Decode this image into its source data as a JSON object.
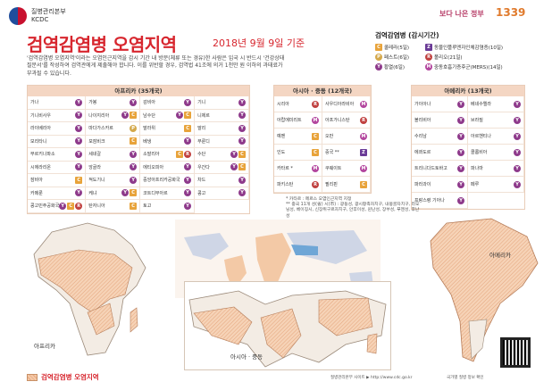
{
  "header": {
    "agency": "질병관리본부",
    "agency_en": "KCDC",
    "title": "검역감염병 오염지역",
    "subtitle": "2018년 9월 9일 기준",
    "intro": "'검역감염병 오염지역'이라는 오염인근지역을 감시 기간 내 방문(체류 또는 경유)한 사람은 입국 시 반드시 '건강상태 질문서'를 작성하여 검역관에게 제출해야 합니다. 이를 위반할 경우, 검역법 41조에 의거 1천만 원 이하의 과태료가 부과될 수 있습니다.",
    "brand_right": "보다 나은 정부",
    "brand_1339": "1339"
  },
  "legend": {
    "title": "검역감염병 (감시기간)",
    "items": [
      {
        "code": "C",
        "label": "콜레라(5일)"
      },
      {
        "code": "Z",
        "label": "동물인플루엔자인체감염증(10일)"
      },
      {
        "code": "P",
        "label": "페스트(6일)"
      },
      {
        "code": "R",
        "label": "폴리오(21일)"
      },
      {
        "code": "Y",
        "label": "황열(6일)"
      },
      {
        "code": "M",
        "label": "중동호흡기증후군(MERS)(14일)"
      }
    ]
  },
  "regions": {
    "africa": {
      "title": "아프리카 (35개국)",
      "countries": [
        {
          "name": "가나",
          "tags": [
            "Y"
          ]
        },
        {
          "name": "가봉",
          "tags": [
            "Y"
          ]
        },
        {
          "name": "감비아",
          "tags": [
            "Y"
          ]
        },
        {
          "name": "기니",
          "tags": [
            "Y"
          ]
        },
        {
          "name": "기니비사우",
          "tags": [
            "Y"
          ]
        },
        {
          "name": "나이지리아",
          "tags": [
            "Y",
            "C"
          ]
        },
        {
          "name": "남수단",
          "tags": [
            "Y",
            "C"
          ]
        },
        {
          "name": "니제르",
          "tags": [
            "Y"
          ]
        },
        {
          "name": "라이베리아",
          "tags": [
            "Y"
          ]
        },
        {
          "name": "마다가스카르",
          "tags": [
            "P"
          ]
        },
        {
          "name": "말라위",
          "tags": [
            "C"
          ]
        },
        {
          "name": "말리",
          "tags": [
            "Y"
          ]
        },
        {
          "name": "모리타니",
          "tags": [
            "Y"
          ]
        },
        {
          "name": "모잠비크",
          "tags": [
            "C"
          ]
        },
        {
          "name": "베냉",
          "tags": [
            "Y"
          ]
        },
        {
          "name": "부룬디",
          "tags": [
            "Y"
          ]
        },
        {
          "name": "부르키나파소",
          "tags": [
            "Y"
          ]
        },
        {
          "name": "세네갈",
          "tags": [
            "Y"
          ]
        },
        {
          "name": "소말리아",
          "tags": [
            "C",
            "R"
          ]
        },
        {
          "name": "수단",
          "tags": [
            "Y",
            "C"
          ]
        },
        {
          "name": "시에라리온",
          "tags": [
            "Y"
          ]
        },
        {
          "name": "앙골라",
          "tags": [
            "Y"
          ]
        },
        {
          "name": "에티오피아",
          "tags": [
            "Y"
          ]
        },
        {
          "name": "우간다",
          "tags": [
            "Y",
            "C"
          ]
        },
        {
          "name": "잠비아",
          "tags": [
            "C"
          ]
        },
        {
          "name": "적도기니",
          "tags": [
            "Y"
          ]
        },
        {
          "name": "중앙아프리카공화국",
          "tags": [
            "Y"
          ]
        },
        {
          "name": "차드",
          "tags": [
            "Y"
          ]
        },
        {
          "name": "카메룬",
          "tags": [
            "Y"
          ]
        },
        {
          "name": "케냐",
          "tags": [
            "Y",
            "C"
          ]
        },
        {
          "name": "코트디부아르",
          "tags": [
            "Y"
          ]
        },
        {
          "name": "콩고",
          "tags": [
            "Y"
          ]
        },
        {
          "name": "콩고민주공화국",
          "tags": [
            "Y",
            "C",
            "R"
          ]
        },
        {
          "name": "탄자니아",
          "tags": [
            "C"
          ]
        },
        {
          "name": "토고",
          "tags": [
            "Y"
          ]
        }
      ]
    },
    "asia": {
      "title": "아시아 · 중동 (12개국)",
      "countries": [
        {
          "name": "시리아",
          "tags": [
            "R"
          ]
        },
        {
          "name": "사우디아라비아",
          "tags": [
            "M"
          ]
        },
        {
          "name": "아랍에미리트",
          "tags": [
            "M"
          ]
        },
        {
          "name": "아프가니스탄",
          "tags": [
            "R"
          ]
        },
        {
          "name": "예멘",
          "tags": [
            "C"
          ]
        },
        {
          "name": "오만",
          "tags": [
            "M"
          ]
        },
        {
          "name": "인도",
          "tags": [
            "C"
          ]
        },
        {
          "name": "중국 **",
          "tags": [
            "Z"
          ]
        },
        {
          "name": "카타르 *",
          "tags": [
            "M"
          ]
        },
        {
          "name": "쿠웨이트",
          "tags": [
            "M"
          ]
        },
        {
          "name": "파키스탄",
          "tags": [
            "R"
          ]
        },
        {
          "name": "필리핀",
          "tags": [
            "C"
          ]
        }
      ]
    },
    "america": {
      "title": "아메리카 (13개국)",
      "countries": [
        {
          "name": "가이아나",
          "tags": [
            "Y"
          ]
        },
        {
          "name": "베네수엘라",
          "tags": [
            "Y"
          ]
        },
        {
          "name": "볼리비아",
          "tags": [
            "Y"
          ]
        },
        {
          "name": "브라질",
          "tags": [
            "Y"
          ]
        },
        {
          "name": "수리남",
          "tags": [
            "Y"
          ]
        },
        {
          "name": "아르헨티나",
          "tags": [
            "Y"
          ]
        },
        {
          "name": "에콰도르",
          "tags": [
            "Y"
          ]
        },
        {
          "name": "콜롬비아",
          "tags": [
            "Y"
          ]
        },
        {
          "name": "트리니다드토바고",
          "tags": [
            "Y"
          ]
        },
        {
          "name": "파나마",
          "tags": [
            "Y"
          ]
        },
        {
          "name": "파라과이",
          "tags": [
            "Y"
          ]
        },
        {
          "name": "페루",
          "tags": [
            "Y"
          ]
        },
        {
          "name": "프랑스령 기아나",
          "tags": [
            "Y"
          ]
        }
      ]
    }
  },
  "footnotes": [
    "* 카타르 : 메르스 오염인근지역 지정",
    "** 중국 11개 성(省) 시(市) : 광동성, 광시좡족자치구, 내몽골자치구, 라오닝성, 베이징시, 신장위구르자치구, 안후이성, 윈난성, 장쑤성, 푸젠성, 후난성"
  ],
  "maps": {
    "africa_label": "아프리카",
    "asia_label": "아시아 · 중동",
    "america_label": "아메리카"
  },
  "bottom": {
    "legend_label": "검역감염병 오염지역",
    "site": "질병관리본부 사이트 ▶ http://www.cdc.go.kr",
    "inquiry": "국가별 질병 정보 확인"
  }
}
